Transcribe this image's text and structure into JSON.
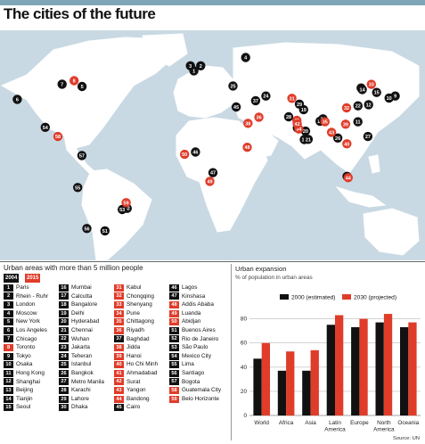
{
  "title": "The cities of the future",
  "colors": {
    "black": "#111111",
    "red": "#e03c2a",
    "sea": "#c9d9e3",
    "land": "#ffffff"
  },
  "urban": {
    "title": "Urban areas with more than 5 million people",
    "year_a": "2004",
    "year_b": "2015"
  },
  "cities": [
    {
      "n": "1",
      "name": "Paris",
      "c": "black"
    },
    {
      "n": "2",
      "name": "Rhein - Ruhr",
      "c": "black"
    },
    {
      "n": "3",
      "name": "London",
      "c": "black"
    },
    {
      "n": "4",
      "name": "Moscow",
      "c": "black"
    },
    {
      "n": "5",
      "name": "New York",
      "c": "black"
    },
    {
      "n": "6",
      "name": "Los Angeles",
      "c": "black"
    },
    {
      "n": "7",
      "name": "Chicago",
      "c": "black"
    },
    {
      "n": "8",
      "name": "Toronto",
      "c": "red"
    },
    {
      "n": "9",
      "name": "Tokyo",
      "c": "black"
    },
    {
      "n": "10",
      "name": "Osaka",
      "c": "black"
    },
    {
      "n": "11",
      "name": "Hong Kong",
      "c": "black"
    },
    {
      "n": "12",
      "name": "Shanghai",
      "c": "black"
    },
    {
      "n": "13",
      "name": "Beijing",
      "c": "black"
    },
    {
      "n": "14",
      "name": "Tianjin",
      "c": "black"
    },
    {
      "n": "15",
      "name": "Seoul",
      "c": "black"
    },
    {
      "n": "16",
      "name": "Mumbai",
      "c": "black"
    },
    {
      "n": "17",
      "name": "Calcutta",
      "c": "black"
    },
    {
      "n": "18",
      "name": "Bangalore",
      "c": "black"
    },
    {
      "n": "19",
      "name": "Delhi",
      "c": "black"
    },
    {
      "n": "20",
      "name": "Hyderabad",
      "c": "black"
    },
    {
      "n": "21",
      "name": "Chennai",
      "c": "black"
    },
    {
      "n": "22",
      "name": "Wuhan",
      "c": "black"
    },
    {
      "n": "23",
      "name": "Jakarta",
      "c": "black"
    },
    {
      "n": "24",
      "name": "Teheran",
      "c": "black"
    },
    {
      "n": "25",
      "name": "Istanbul",
      "c": "black"
    },
    {
      "n": "26",
      "name": "Bangkok",
      "c": "black"
    },
    {
      "n": "27",
      "name": "Metro Manila",
      "c": "black"
    },
    {
      "n": "28",
      "name": "Karachi",
      "c": "black"
    },
    {
      "n": "29",
      "name": "Lahore",
      "c": "black"
    },
    {
      "n": "30",
      "name": "Dhaka",
      "c": "black"
    },
    {
      "n": "31",
      "name": "Kabul",
      "c": "red"
    },
    {
      "n": "32",
      "name": "Chongqing",
      "c": "red"
    },
    {
      "n": "33",
      "name": "Shenyang",
      "c": "red"
    },
    {
      "n": "34",
      "name": "Pune",
      "c": "red"
    },
    {
      "n": "35",
      "name": "Chittagong",
      "c": "red"
    },
    {
      "n": "36",
      "name": "Riyadh",
      "c": "red"
    },
    {
      "n": "37",
      "name": "Baghdad",
      "c": "black"
    },
    {
      "n": "38",
      "name": "Jidda",
      "c": "red"
    },
    {
      "n": "39",
      "name": "Hanoi",
      "c": "red"
    },
    {
      "n": "40",
      "name": "Ho Chi Minh",
      "c": "red"
    },
    {
      "n": "41",
      "name": "Ahmadabad",
      "c": "red"
    },
    {
      "n": "42",
      "name": "Surat",
      "c": "red"
    },
    {
      "n": "43",
      "name": "Yangon",
      "c": "red"
    },
    {
      "n": "44",
      "name": "Bandong",
      "c": "red"
    },
    {
      "n": "45",
      "name": "Cairo",
      "c": "black"
    },
    {
      "n": "46",
      "name": "Lagos",
      "c": "black"
    },
    {
      "n": "47",
      "name": "Kinshasa",
      "c": "black"
    },
    {
      "n": "48",
      "name": "Addis Ababa",
      "c": "red"
    },
    {
      "n": "49",
      "name": "Luanda",
      "c": "red"
    },
    {
      "n": "50",
      "name": "Abidjan",
      "c": "red"
    },
    {
      "n": "51",
      "name": "Buenos Aires",
      "c": "black"
    },
    {
      "n": "52",
      "name": "Rio de Janeiro",
      "c": "black"
    },
    {
      "n": "53",
      "name": "São Paulo",
      "c": "black"
    },
    {
      "n": "54",
      "name": "Mexico City",
      "c": "black"
    },
    {
      "n": "55",
      "name": "Lima",
      "c": "black"
    },
    {
      "n": "56",
      "name": "Santiago",
      "c": "black"
    },
    {
      "n": "57",
      "name": "Bogota",
      "c": "black"
    },
    {
      "n": "58",
      "name": "Guatemala City",
      "c": "red"
    },
    {
      "n": "59",
      "name": "Belo Horizonte",
      "c": "red"
    }
  ],
  "map_markers": [
    {
      "n": "1",
      "lon": 2.3,
      "lat": 48.9,
      "c": "black"
    },
    {
      "n": "2",
      "lon": 7,
      "lat": 51.5,
      "c": "black"
    },
    {
      "n": "3",
      "lon": -0.1,
      "lat": 51.5,
      "c": "black"
    },
    {
      "n": "4",
      "lon": 37.6,
      "lat": 55.8,
      "c": "black"
    },
    {
      "n": "5",
      "lon": -74,
      "lat": 40.7,
      "c": "black"
    },
    {
      "n": "6",
      "lon": -118.2,
      "lat": 34,
      "c": "black"
    },
    {
      "n": "7",
      "lon": -87.6,
      "lat": 41.9,
      "c": "black"
    },
    {
      "n": "8",
      "lon": -79.4,
      "lat": 43.7,
      "c": "red"
    },
    {
      "n": "9",
      "lon": 139.7,
      "lat": 35.7,
      "c": "black"
    },
    {
      "n": "10",
      "lon": 135.5,
      "lat": 34.7,
      "c": "black"
    },
    {
      "n": "11",
      "lon": 114.2,
      "lat": 22.3,
      "c": "black"
    },
    {
      "n": "12",
      "lon": 121.5,
      "lat": 31.2,
      "c": "black"
    },
    {
      "n": "13",
      "lon": 116.4,
      "lat": 39.9,
      "c": "black"
    },
    {
      "n": "14",
      "lon": 117.2,
      "lat": 39.1,
      "c": "black"
    },
    {
      "n": "15",
      "lon": 127,
      "lat": 37.6,
      "c": "black"
    },
    {
      "n": "16",
      "lon": 72.9,
      "lat": 19.1,
      "c": "black"
    },
    {
      "n": "17",
      "lon": 88.4,
      "lat": 22.6,
      "c": "black"
    },
    {
      "n": "18",
      "lon": 77.6,
      "lat": 13,
      "c": "black"
    },
    {
      "n": "19",
      "lon": 77.2,
      "lat": 28.6,
      "c": "black"
    },
    {
      "n": "20",
      "lon": 78.5,
      "lat": 17.4,
      "c": "black"
    },
    {
      "n": "21",
      "lon": 80.3,
      "lat": 13.1,
      "c": "black"
    },
    {
      "n": "22",
      "lon": 114.3,
      "lat": 30.6,
      "c": "black"
    },
    {
      "n": "23",
      "lon": 106.8,
      "lat": -6.2,
      "c": "black"
    },
    {
      "n": "24",
      "lon": 51.4,
      "lat": 35.7,
      "c": "black"
    },
    {
      "n": "25",
      "lon": 29,
      "lat": 41,
      "c": "black"
    },
    {
      "n": "26",
      "lon": 100.5,
      "lat": 13.8,
      "c": "black"
    },
    {
      "n": "27",
      "lon": 121,
      "lat": 14.6,
      "c": "black"
    },
    {
      "n": "28",
      "lon": 67,
      "lat": 24.9,
      "c": "black"
    },
    {
      "n": "29",
      "lon": 74.3,
      "lat": 31.5,
      "c": "black"
    },
    {
      "n": "30",
      "lon": 90.4,
      "lat": 23.8,
      "c": "black"
    },
    {
      "n": "31",
      "lon": 69.2,
      "lat": 34.5,
      "c": "red"
    },
    {
      "n": "32",
      "lon": 106.5,
      "lat": 29.6,
      "c": "red"
    },
    {
      "n": "33",
      "lon": 123.4,
      "lat": 41.8,
      "c": "red"
    },
    {
      "n": "34",
      "lon": 73.9,
      "lat": 18.5,
      "c": "red"
    },
    {
      "n": "35",
      "lon": 91.8,
      "lat": 22.3,
      "c": "red"
    },
    {
      "n": "36",
      "lon": 46.7,
      "lat": 24.7,
      "c": "red"
    },
    {
      "n": "37",
      "lon": 44.4,
      "lat": 33.3,
      "c": "black"
    },
    {
      "n": "38",
      "lon": 39.2,
      "lat": 21.5,
      "c": "red"
    },
    {
      "n": "39",
      "lon": 105.8,
      "lat": 21,
      "c": "red"
    },
    {
      "n": "40",
      "lon": 106.7,
      "lat": 10.8,
      "c": "red"
    },
    {
      "n": "41",
      "lon": 72.6,
      "lat": 23,
      "c": "red"
    },
    {
      "n": "42",
      "lon": 72.8,
      "lat": 21.2,
      "c": "red"
    },
    {
      "n": "43",
      "lon": 96.2,
      "lat": 16.8,
      "c": "red"
    },
    {
      "n": "44",
      "lon": 107.6,
      "lat": -6.9,
      "c": "red"
    },
    {
      "n": "45",
      "lon": 31.2,
      "lat": 30,
      "c": "black"
    },
    {
      "n": "46",
      "lon": 3.4,
      "lat": 6.5,
      "c": "black"
    },
    {
      "n": "47",
      "lon": 15.3,
      "lat": -4.3,
      "c": "black"
    },
    {
      "n": "48",
      "lon": 38.7,
      "lat": 9,
      "c": "red"
    },
    {
      "n": "49",
      "lon": 13.2,
      "lat": -8.8,
      "c": "red"
    },
    {
      "n": "50",
      "lon": -4,
      "lat": 5.3,
      "c": "red"
    },
    {
      "n": "51",
      "lon": -58.4,
      "lat": -34.6,
      "c": "black"
    },
    {
      "n": "52",
      "lon": -43.2,
      "lat": -22.9,
      "c": "black"
    },
    {
      "n": "53",
      "lon": -46.6,
      "lat": -23.5,
      "c": "black"
    },
    {
      "n": "54",
      "lon": -99.1,
      "lat": 19.4,
      "c": "black"
    },
    {
      "n": "55",
      "lon": -77,
      "lat": -12,
      "c": "black"
    },
    {
      "n": "56",
      "lon": -70.7,
      "lat": -33.4,
      "c": "black"
    },
    {
      "n": "57",
      "lon": -74.1,
      "lat": 4.7,
      "c": "black"
    },
    {
      "n": "58",
      "lon": -90.5,
      "lat": 14.6,
      "c": "red"
    },
    {
      "n": "59",
      "lon": -43.9,
      "lat": -19.9,
      "c": "red"
    }
  ],
  "chart_data": {
    "type": "bar",
    "title": "Urban expansion",
    "subtitle": "% of population in urban areas",
    "categories": [
      "World",
      "Africa",
      "Asia",
      "Latin America",
      "Europe",
      "North America",
      "Oceania"
    ],
    "category_lines": [
      [
        "World"
      ],
      [
        "Africa"
      ],
      [
        "Asia"
      ],
      [
        "Latin",
        "America"
      ],
      [
        "Europe"
      ],
      [
        "North",
        "America"
      ],
      [
        "Oceania"
      ]
    ],
    "series": [
      {
        "name": "2000 (estimated)",
        "color": "#111111",
        "values": [
          47,
          37,
          37,
          75,
          73,
          77,
          73
        ]
      },
      {
        "name": "2030 (projected)",
        "color": "#e03c2a",
        "values": [
          60,
          53,
          54,
          83,
          80,
          84,
          77
        ]
      }
    ],
    "ylim": [
      0,
      90
    ],
    "yticks": [
      0,
      20,
      40,
      60,
      80
    ],
    "grid": true,
    "legend": "top"
  },
  "source": "Source: UN"
}
